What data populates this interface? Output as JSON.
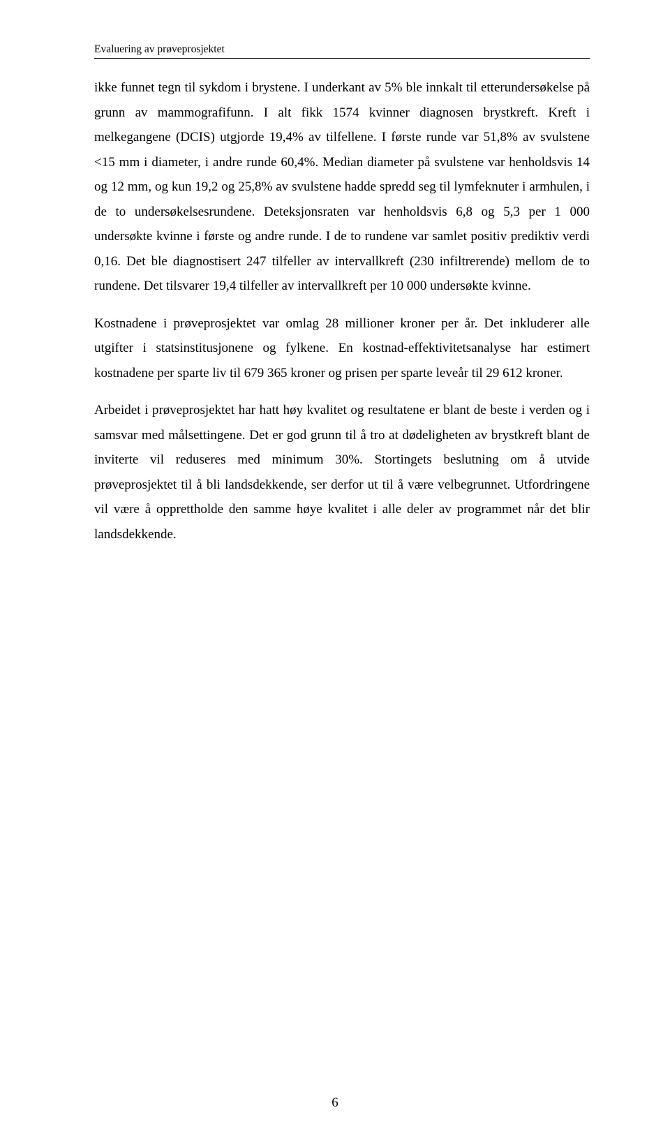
{
  "header": {
    "title": "Evaluering av prøveprosjektet"
  },
  "body": {
    "p1": "ikke funnet tegn til sykdom i brystene. I underkant av 5% ble innkalt til etterundersøkelse på grunn av mammografifunn. I alt fikk 1574 kvinner diagnosen brystkreft. Kreft i melkegangene (DCIS) utgjorde 19,4% av tilfellene. I første runde var 51,8% av svulstene <15 mm i diameter, i andre runde 60,4%. Median diameter på svulstene var henholdsvis 14 og 12 mm, og kun 19,2 og 25,8% av svulstene hadde spredd seg til lymfeknuter i armhulen, i de to undersøkelsesrundene. Deteksjonsraten var henholdsvis 6,8 og 5,3 per 1 000 undersøkte kvinne i første og andre runde. I de to rundene var samlet positiv prediktiv verdi 0,16. Det ble diagnostisert 247 tilfeller av intervallkreft (230 infiltrerende) mellom de to rundene. Det tilsvarer 19,4 tilfeller av intervallkreft per 10 000 undersøkte kvinne.",
    "p2": "Kostnadene i prøveprosjektet var omlag 28 millioner kroner per år. Det inkluderer alle utgifter i statsinstitusjonene og fylkene. En kostnad-effektivitetsanalyse har estimert kostnadene per sparte liv til 679 365 kroner og prisen per sparte leveår til 29 612 kroner.",
    "p3": "Arbeidet i prøveprosjektet har hatt høy kvalitet og resultatene er blant de beste i verden og i samsvar med målsettingene. Det er god grunn til å tro at dødeligheten av brystkreft blant de inviterte vil reduseres med minimum 30%. Stortingets beslutning om å utvide prøveprosjektet til å bli landsdekkende, ser derfor ut til å være velbegrunnet. Utfordringene vil være å opprettholde den samme høye kvalitet i alle deler av programmet når det blir landsdekkende."
  },
  "footer": {
    "page_number": "6"
  }
}
